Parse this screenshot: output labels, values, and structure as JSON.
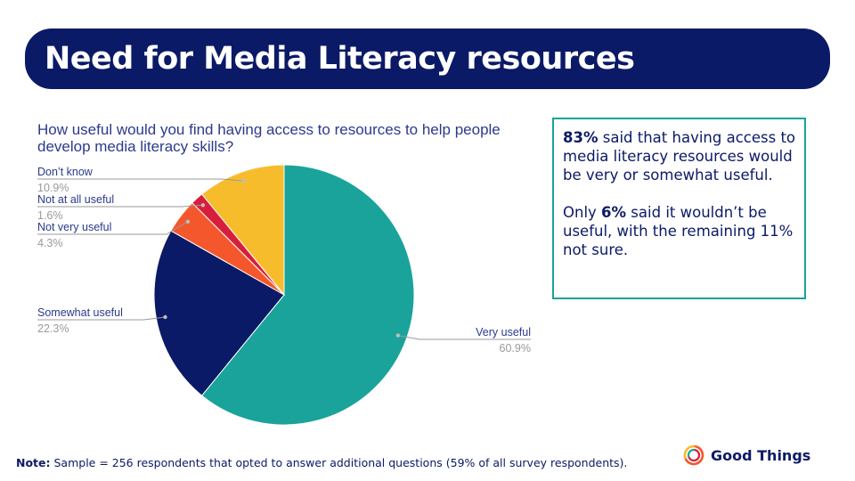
{
  "header": {
    "title": "Need for Media Literacy resources"
  },
  "chart_data": {
    "type": "pie",
    "title": "How useful would you find having access to resources to help people develop media literacy skills?",
    "slices": [
      {
        "label": "Very useful",
        "value_label": "60.9%",
        "value": 60.9,
        "color": "#1aa39a"
      },
      {
        "label": "Somewhat useful",
        "value_label": "22.3%",
        "value": 22.3,
        "color": "#0b1a66"
      },
      {
        "label": "Not very useful",
        "value_label": "4.3%",
        "value": 4.3,
        "color": "#f4572b"
      },
      {
        "label": "Not at all useful",
        "value_label": "1.6%",
        "value": 1.6,
        "color": "#d81e3c"
      },
      {
        "label": "Don’t know",
        "value_label": "10.9%",
        "value": 10.9,
        "color": "#f7bc2c"
      }
    ]
  },
  "callout": {
    "p1_bold": "83%",
    "p1_rest": " said that having access to media literacy resources would be very or somewhat useful.",
    "p2_start": "Only ",
    "p2_bold": "6%",
    "p2_rest": " said it wouldn’t be useful, with the remaining 11% not sure."
  },
  "footer": {
    "note_label": "Note:",
    "note_text": " Sample = 256 respondents that opted to answer additional questions (59% of all survey respondents).",
    "logo_text": "Good Things"
  }
}
